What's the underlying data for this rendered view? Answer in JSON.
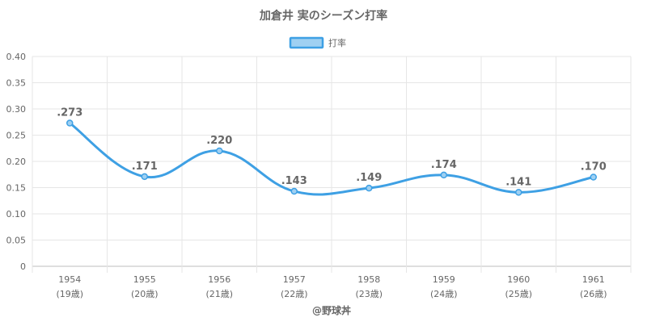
{
  "chart_data": {
    "type": "line",
    "title": "加倉井 実のシーズン打率",
    "legend": {
      "label": "打率",
      "position": "top"
    },
    "categories": [
      "1954",
      "1955",
      "1956",
      "1957",
      "1958",
      "1959",
      "1960",
      "1961"
    ],
    "category_sublabels": [
      "(19歳)",
      "(20歳)",
      "(21歳)",
      "(22歳)",
      "(23歳)",
      "(24歳)",
      "(25歳)",
      "(26歳)"
    ],
    "series": [
      {
        "name": "打率",
        "values": [
          0.273,
          0.171,
          0.22,
          0.143,
          0.149,
          0.174,
          0.141,
          0.17
        ],
        "data_labels": [
          ".273",
          ".171",
          ".220",
          ".143",
          ".149",
          ".174",
          ".141",
          ".170"
        ],
        "color": "#3ea0e4",
        "fill": "#9fd0f2"
      }
    ],
    "y_ticks": [
      "0",
      "0.05",
      "0.10",
      "0.15",
      "0.20",
      "0.25",
      "0.30",
      "0.35",
      "0.40"
    ],
    "ylim": [
      0,
      0.4
    ],
    "grid": true,
    "line_style": "smooth",
    "source_label": "@野球丼"
  }
}
